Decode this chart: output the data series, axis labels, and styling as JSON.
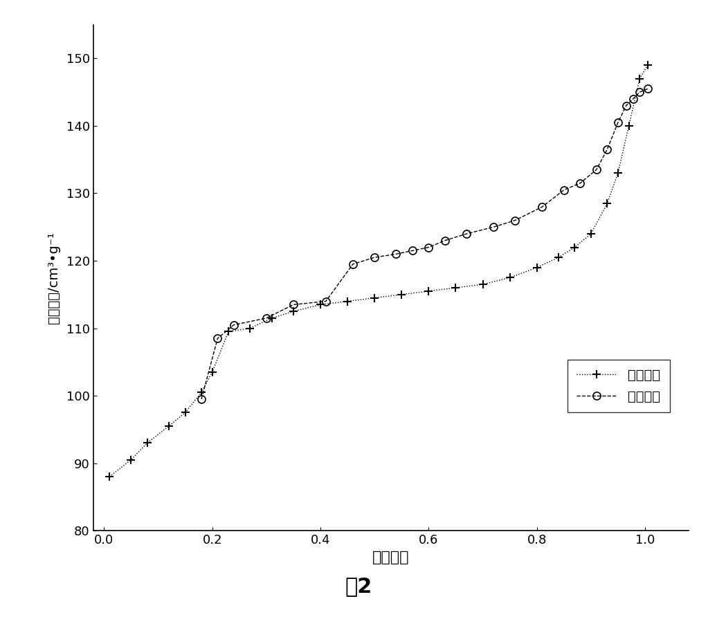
{
  "adsorption_x": [
    0.01,
    0.05,
    0.08,
    0.12,
    0.15,
    0.18,
    0.2,
    0.23,
    0.27,
    0.31,
    0.35,
    0.4,
    0.45,
    0.5,
    0.55,
    0.6,
    0.65,
    0.7,
    0.75,
    0.8,
    0.84,
    0.87,
    0.9,
    0.93,
    0.95,
    0.97,
    0.99,
    1.005
  ],
  "adsorption_y": [
    88.0,
    90.5,
    93.0,
    95.5,
    97.5,
    100.5,
    103.5,
    109.5,
    110.0,
    111.5,
    112.5,
    113.5,
    114.0,
    114.5,
    115.0,
    115.5,
    116.0,
    116.5,
    117.5,
    119.0,
    120.5,
    122.0,
    124.0,
    128.5,
    133.0,
    140.0,
    147.0,
    149.0
  ],
  "desorption_x": [
    0.18,
    0.21,
    0.24,
    0.3,
    0.35,
    0.41,
    0.46,
    0.5,
    0.54,
    0.57,
    0.6,
    0.63,
    0.67,
    0.72,
    0.76,
    0.81,
    0.85,
    0.88,
    0.91,
    0.93,
    0.95,
    0.965,
    0.978,
    0.99,
    1.005
  ],
  "desorption_y": [
    99.5,
    108.5,
    110.5,
    111.5,
    113.5,
    114.0,
    119.5,
    120.5,
    121.0,
    121.5,
    122.0,
    123.0,
    124.0,
    125.0,
    126.0,
    128.0,
    130.5,
    131.5,
    133.5,
    136.5,
    140.5,
    143.0,
    144.0,
    145.0,
    145.5
  ],
  "xlabel": "相对压力",
  "ylabel": "吸附容量/cm³•g⁻¹",
  "legend_adsorption": "吸附曲线",
  "legend_desorption": "脱附曲线",
  "caption": "图2",
  "xlim": [
    -0.02,
    1.08
  ],
  "ylim": [
    80,
    155
  ],
  "yticks": [
    80,
    90,
    100,
    110,
    120,
    130,
    140,
    150
  ],
  "xticks": [
    0.0,
    0.2,
    0.4,
    0.6,
    0.8,
    1.0
  ],
  "background_color": "#ffffff",
  "line_color": "#000000"
}
